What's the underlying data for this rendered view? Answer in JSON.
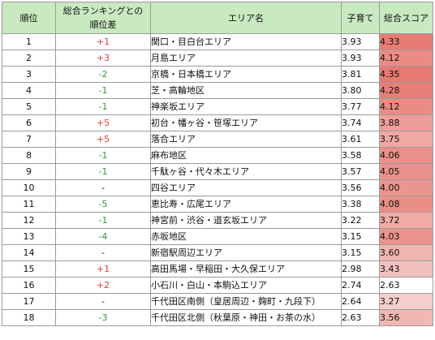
{
  "table": {
    "headers": {
      "rank": "順位",
      "diff_line1": "総合ランキングとの",
      "diff_line2": "順位差",
      "area": "エリア名",
      "childcare": "子育て",
      "total": "総合スコア"
    },
    "score_colors": {
      "high": "#e67a72",
      "low": "#ffffff",
      "min": 2.63,
      "max": 4.35
    },
    "rows": [
      {
        "rank": "1",
        "diff": "+1",
        "area": "関口・目白台エリア",
        "childcare": "3.93",
        "total": "4.33"
      },
      {
        "rank": "2",
        "diff": "+3",
        "area": "月島エリア",
        "childcare": "3.93",
        "total": "4.12"
      },
      {
        "rank": "3",
        "diff": "-2",
        "area": "京橋・日本橋エリア",
        "childcare": "3.81",
        "total": "4.35"
      },
      {
        "rank": "4",
        "diff": "-1",
        "area": "芝・高輪地区",
        "childcare": "3.80",
        "total": "4.28"
      },
      {
        "rank": "5",
        "diff": "-1",
        "area": "神楽坂エリア",
        "childcare": "3.77",
        "total": "4.12"
      },
      {
        "rank": "6",
        "diff": "+5",
        "area": "初台・幡ヶ谷・笹塚エリア",
        "childcare": "3.74",
        "total": "3.88"
      },
      {
        "rank": "7",
        "diff": "+5",
        "area": "落合エリア",
        "childcare": "3.61",
        "total": "3.75"
      },
      {
        "rank": "8",
        "diff": "-1",
        "area": "麻布地区",
        "childcare": "3.58",
        "total": "4.06"
      },
      {
        "rank": "9",
        "diff": "-1",
        "area": "千駄ヶ谷・代々木エリア",
        "childcare": "3.57",
        "total": "4.05"
      },
      {
        "rank": "10",
        "diff": "-",
        "area": "四谷エリア",
        "childcare": "3.56",
        "total": "4.00"
      },
      {
        "rank": "11",
        "diff": "-5",
        "area": "恵比寿・広尾エリア",
        "childcare": "3.38",
        "total": "4.08"
      },
      {
        "rank": "12",
        "diff": "-1",
        "area": "神宮前・渋谷・道玄坂エリア",
        "childcare": "3.22",
        "total": "3.72"
      },
      {
        "rank": "13",
        "diff": "-4",
        "area": "赤坂地区",
        "childcare": "3.15",
        "total": "4.03"
      },
      {
        "rank": "14",
        "diff": "-",
        "area": "新宿駅周辺エリア",
        "childcare": "3.15",
        "total": "3.60"
      },
      {
        "rank": "15",
        "diff": "+1",
        "area": "高田馬場・早稲田・大久保エリア",
        "childcare": "2.98",
        "total": "3.43"
      },
      {
        "rank": "16",
        "diff": "+2",
        "area": "小石川・白山・本駒込エリア",
        "childcare": "2.74",
        "total": "2.63"
      },
      {
        "rank": "17",
        "diff": "-",
        "area": "千代田区南側（皇居周辺・麹町・九段下）",
        "childcare": "2.64",
        "total": "3.27"
      },
      {
        "rank": "18",
        "diff": "-3",
        "area": "千代田区北側（秋葉原・神田・お茶の水）",
        "childcare": "2.63",
        "total": "3.56"
      }
    ]
  }
}
